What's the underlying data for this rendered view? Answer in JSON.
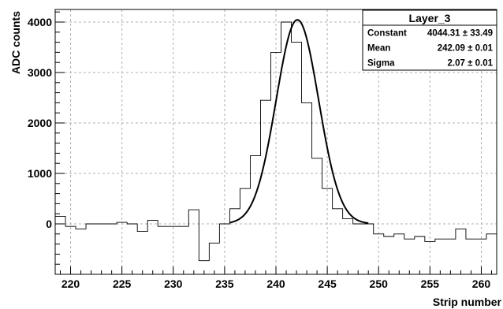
{
  "chart_data": {
    "type": "line",
    "xlabel": "Strip number",
    "ylabel": "ADC counts",
    "xlim": [
      218.5,
      261.5
    ],
    "ylim": [
      -1000,
      4250
    ],
    "xticks": [
      220,
      225,
      230,
      235,
      240,
      245,
      250,
      255,
      260
    ],
    "yticks": [
      0,
      1000,
      2000,
      3000,
      4000
    ],
    "grid": true,
    "histogram": {
      "bin_width": 1,
      "x_start": 218.5,
      "values": [
        150,
        -50,
        -100,
        0,
        0,
        0,
        30,
        0,
        -150,
        70,
        -50,
        -50,
        -50,
        280,
        -730,
        -380,
        0,
        300,
        700,
        1350,
        2450,
        3400,
        4000,
        3600,
        2400,
        1300,
        700,
        300,
        100,
        0,
        0,
        -200,
        -250,
        -200,
        -300,
        -250,
        -350,
        -300,
        -300,
        -100,
        -300,
        -300,
        -200
      ]
    },
    "fit": {
      "type": "gaussian",
      "constant": 4044.31,
      "mean": 242.09,
      "sigma": 2.07,
      "x_range": [
        235.5,
        249.0
      ]
    },
    "stats_box": {
      "title": "Layer_3",
      "rows": [
        {
          "label": "Constant",
          "value": "4044.31",
          "error": "33.49"
        },
        {
          "label": "Mean",
          "value": "242.09",
          "error": "0.01"
        },
        {
          "label": "Sigma",
          "value": "2.07",
          "error": "0.01"
        }
      ],
      "pm_symbol": "±"
    }
  }
}
